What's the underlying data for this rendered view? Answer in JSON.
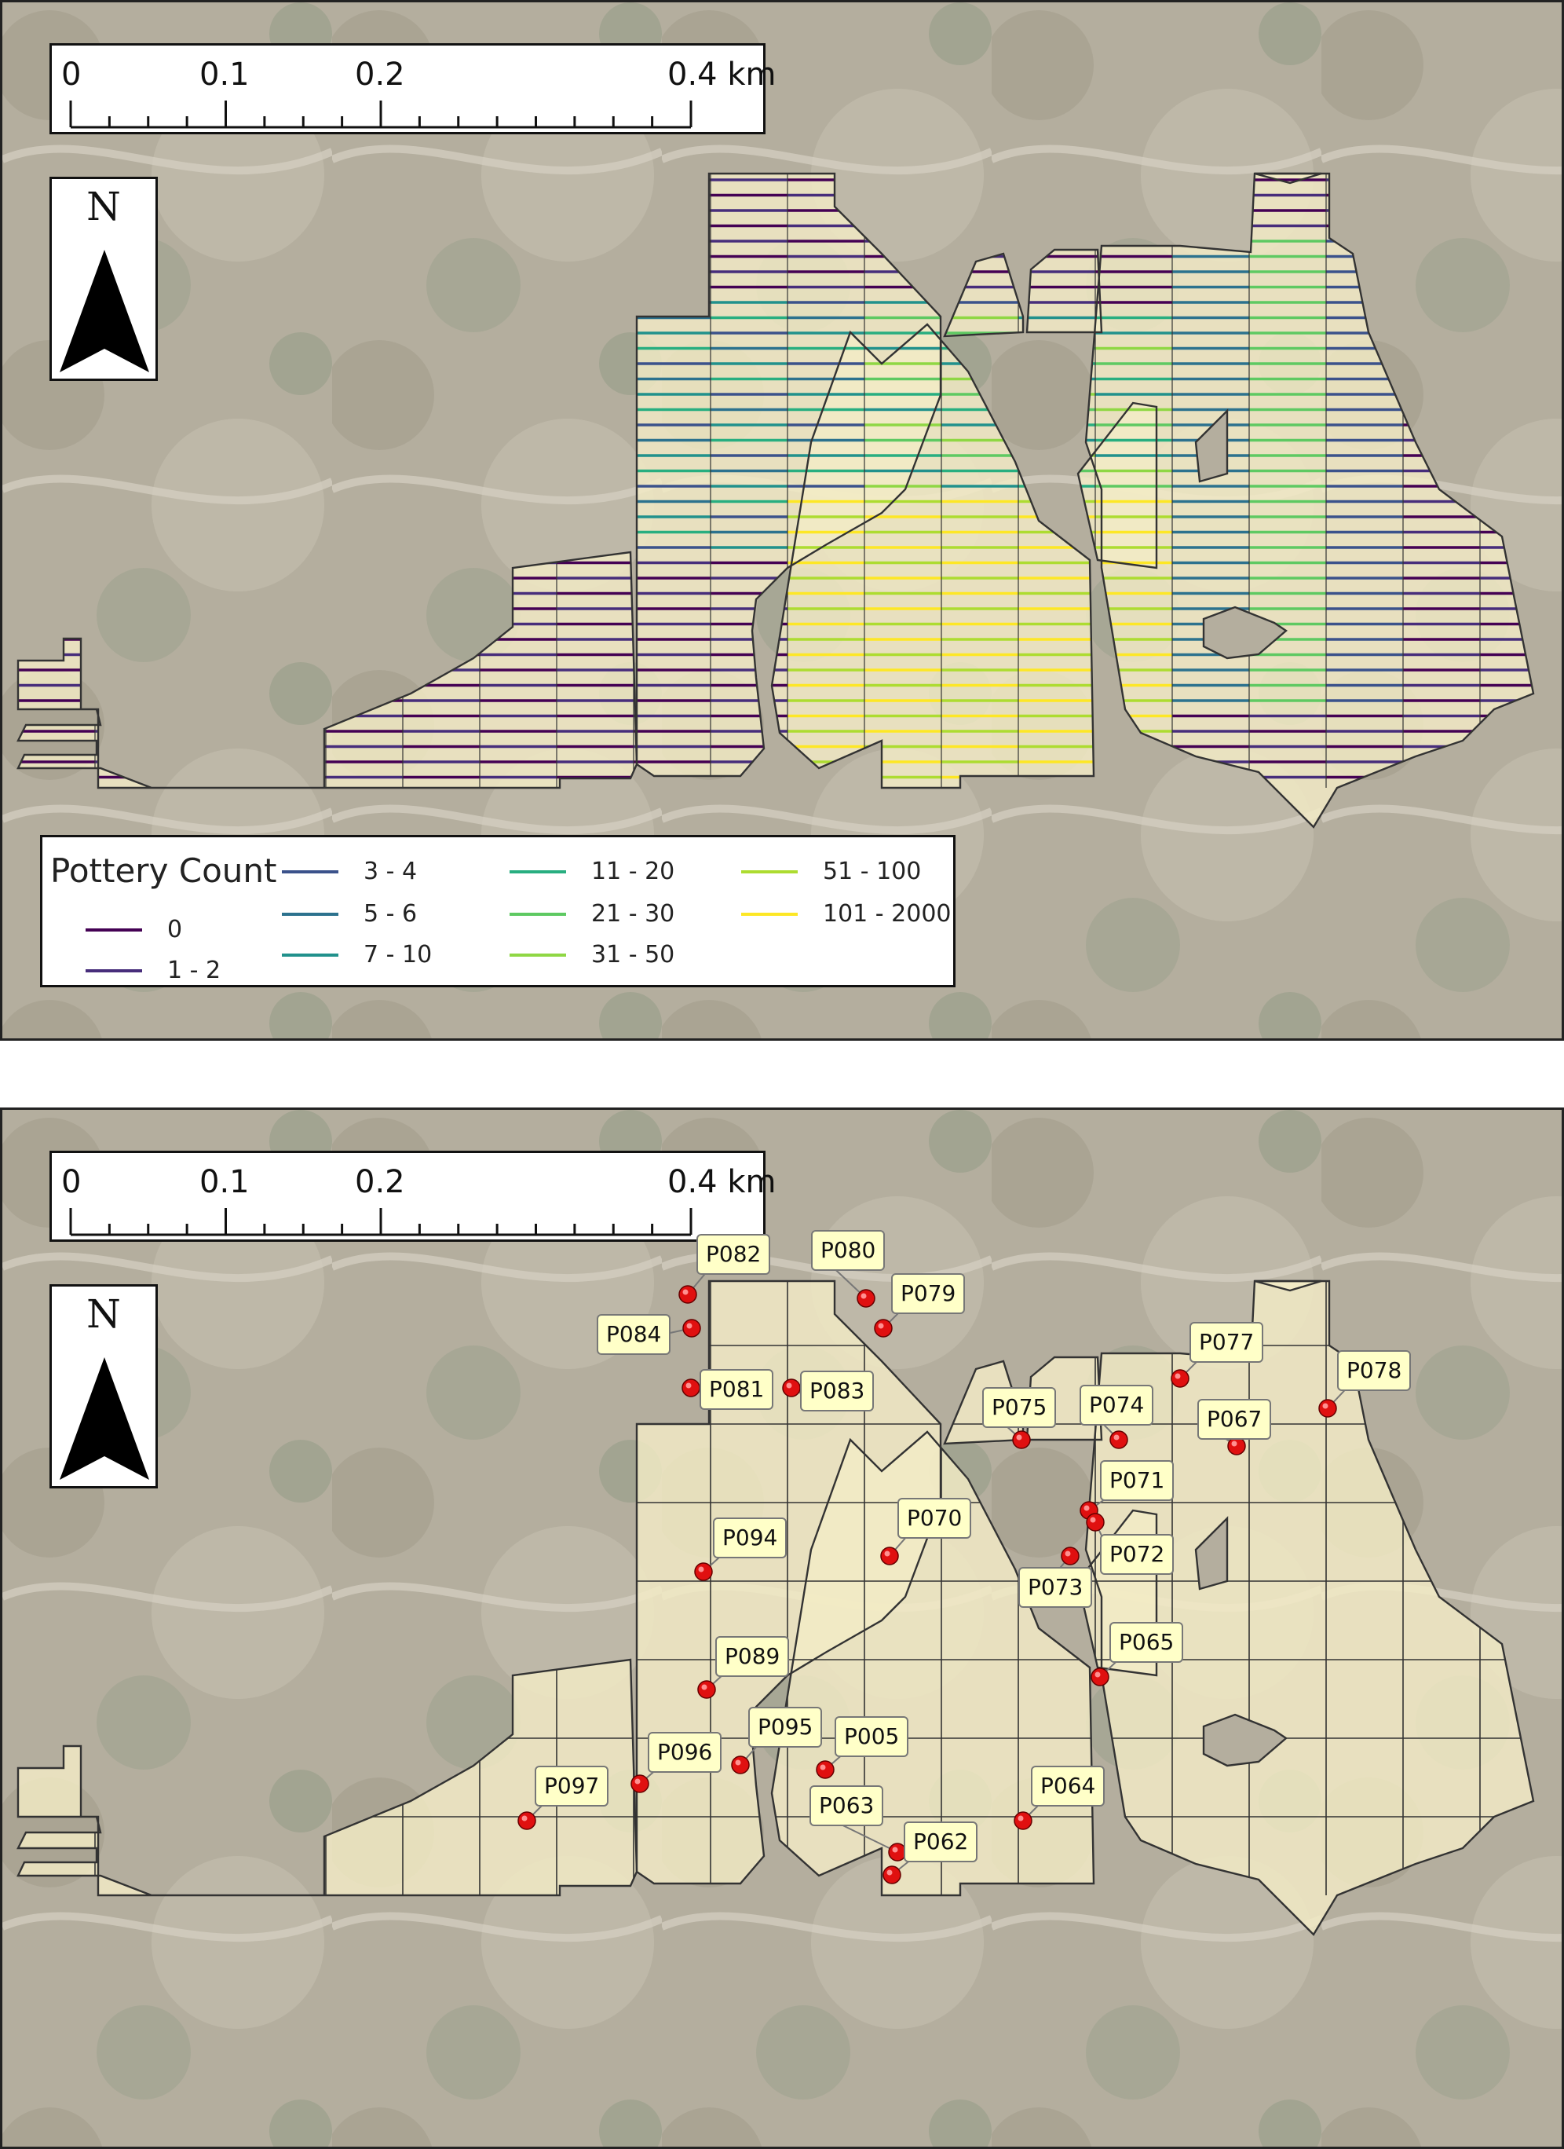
{
  "scale_bar": {
    "labels": [
      "0",
      "0.1",
      "0.2",
      "0.4 km"
    ]
  },
  "north_arrow": {
    "letter": "N",
    "icon": "north-arrow-icon"
  },
  "legend": {
    "title": "Pottery Count",
    "items": [
      {
        "label": "0",
        "color": "#440154"
      },
      {
        "label": "1 - 2",
        "color": "#472d7b"
      },
      {
        "label": "3 - 4",
        "color": "#3b528b"
      },
      {
        "label": "5 - 6",
        "color": "#2c728e"
      },
      {
        "label": "7 - 10",
        "color": "#21918c"
      },
      {
        "label": "11 - 20",
        "color": "#28ae80"
      },
      {
        "label": "21 - 30",
        "color": "#5ec962"
      },
      {
        "label": "31 - 50",
        "color": "#8fd744"
      },
      {
        "label": "51 - 100",
        "color": "#addc30"
      },
      {
        "label": "101 - 2000",
        "color": "#fde725"
      }
    ]
  },
  "sites": [
    "P082",
    "P080",
    "P079",
    "P084",
    "P081",
    "P083",
    "P077",
    "P078",
    "P075",
    "P074",
    "P067",
    "P071",
    "P072",
    "P073",
    "P070",
    "P094",
    "P065",
    "P089",
    "P095",
    "P005",
    "P096",
    "P097",
    "P064",
    "P063",
    "P062"
  ],
  "colors": {
    "survey_fill": "#f3ecc6",
    "grid_line": "#333333",
    "marker": "#e01010",
    "callout_bg": "#ffffc8"
  }
}
